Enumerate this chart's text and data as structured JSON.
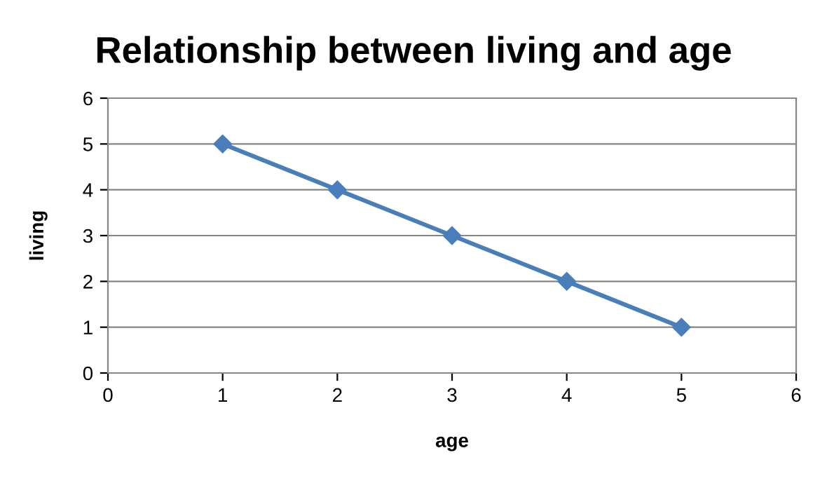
{
  "chart_data": {
    "type": "line",
    "title": "Relationship between living and age",
    "xlabel": "age",
    "ylabel": "living",
    "x": [
      1,
      2,
      3,
      4,
      5
    ],
    "series": [
      {
        "color": "#4a7ebb",
        "values": [
          5,
          4,
          3,
          2,
          1
        ]
      }
    ],
    "xlim": [
      0,
      6
    ],
    "ylim": [
      0,
      6
    ],
    "xticks": [
      0,
      1,
      2,
      3,
      4,
      5,
      6
    ],
    "yticks": [
      0,
      1,
      2,
      3,
      4,
      5,
      6
    ],
    "grid": "y",
    "marker": "diamond",
    "line_style": "solid",
    "legend": false
  }
}
